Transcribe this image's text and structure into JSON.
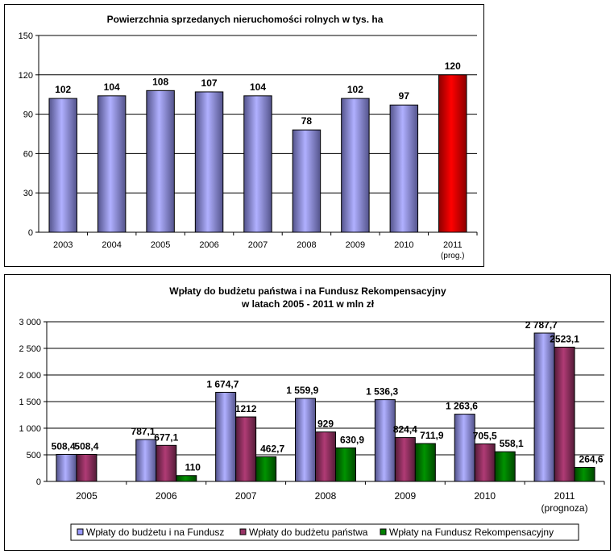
{
  "chart_data": [
    {
      "type": "bar",
      "title": "Powierzchnia sprzedanych nieruchomości rolnych w tys. ha",
      "categories": [
        "2003",
        "2004",
        "2005",
        "2006",
        "2007",
        "2008",
        "2009",
        "2010",
        "2011"
      ],
      "category_notes": [
        "",
        "",
        "",
        "",
        "",
        "",
        "",
        "",
        "(prog.)"
      ],
      "values": [
        102,
        104,
        108,
        107,
        104,
        78,
        102,
        97,
        120
      ],
      "value_labels": [
        "102",
        "104",
        "108",
        "107",
        "104",
        "78",
        "102",
        "97",
        "120"
      ],
      "ylim": [
        0,
        150
      ],
      "yticks": [
        0,
        30,
        60,
        90,
        120,
        150
      ],
      "ytick_labels": [
        "0",
        "30",
        "60",
        "90",
        "120",
        "150"
      ],
      "grid": true,
      "bar_color": "#9999ff",
      "highlight_index": 8,
      "highlight_color": "#ff0000"
    },
    {
      "type": "bar",
      "title": [
        "Wpłaty do budżetu państwa i na Fundusz Rekompensacyjny",
        "w latach 2005 - 2011 w mln zł"
      ],
      "categories": [
        "2005",
        "2006",
        "2007",
        "2008",
        "2009",
        "2010",
        "2011"
      ],
      "category_notes": [
        "",
        "",
        "",
        "",
        "",
        "",
        "(prognoza)"
      ],
      "series": [
        {
          "name": "Wpłaty do budżetu i na Fundusz",
          "color": "#9999ff",
          "values": [
            508.4,
            787.1,
            1674.7,
            1559.9,
            1536.3,
            1263.6,
            2787.7
          ],
          "labels": [
            "508,4",
            "787,1",
            "1 674,7",
            "1 559,9",
            "1 536,3",
            "1 263,6",
            "2 787,7"
          ]
        },
        {
          "name": "Wpłaty do budżetu państwa",
          "color": "#993366",
          "values": [
            508.4,
            677.1,
            1212,
            929,
            824.4,
            705.5,
            2523.1
          ],
          "labels": [
            "508,4",
            "677,1",
            "1212",
            "929",
            "824,4",
            "705,5",
            "2523,1"
          ]
        },
        {
          "name": "Wpłaty na Fundusz Rekompensacyjny",
          "color": "#008000",
          "values": [
            null,
            110,
            462.7,
            630.9,
            711.9,
            558.1,
            264.6
          ],
          "labels": [
            "",
            "110",
            "462,7",
            "630,9",
            "711,9",
            "558,1",
            "264,6"
          ]
        }
      ],
      "ylim": [
        0,
        3000
      ],
      "yticks": [
        0,
        500,
        1000,
        1500,
        2000,
        2500,
        3000
      ],
      "ytick_labels": [
        "0",
        "500",
        "1 000",
        "1 500",
        "2 000",
        "2 500",
        "3 000"
      ],
      "grid": true,
      "legend": "bottom"
    }
  ]
}
